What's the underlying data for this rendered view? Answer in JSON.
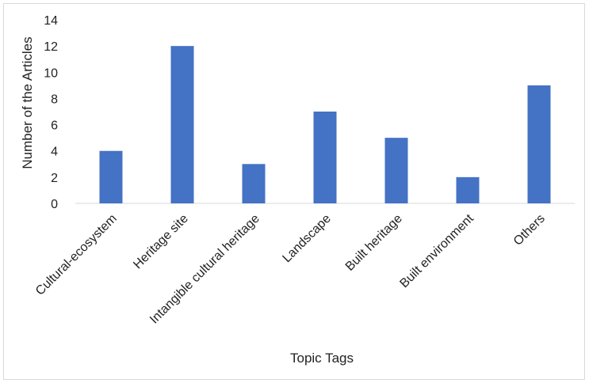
{
  "chart_data": {
    "type": "bar",
    "title": "",
    "xlabel": "Topic Tags",
    "ylabel": "Number of the Articles",
    "categories": [
      "Cultural-ecosystem",
      "Heritage site",
      "Intangible cultural heritage",
      "Landscape",
      "Built heritage",
      "Built environment",
      "Others"
    ],
    "values": [
      4,
      12,
      3,
      7,
      5,
      2,
      9
    ],
    "ylim": [
      0,
      14
    ],
    "yticks": [
      0,
      2,
      4,
      6,
      8,
      10,
      12,
      14
    ],
    "grid": false,
    "legend": "none",
    "bar_color": "#4472c4",
    "axis_color": "#d9d9d9"
  }
}
